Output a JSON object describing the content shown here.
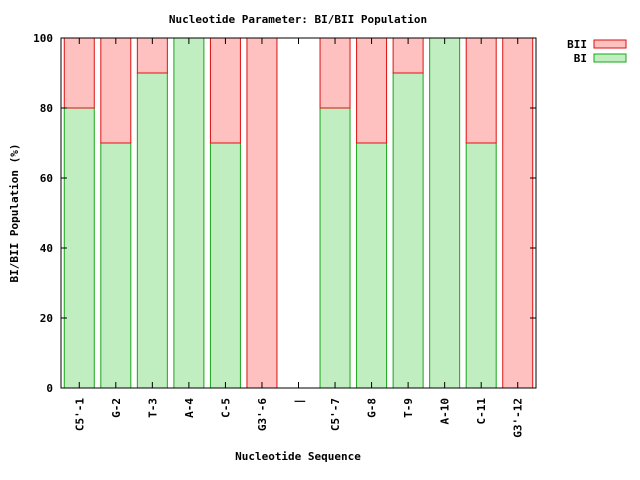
{
  "chart_data": {
    "type": "bar",
    "stacked": true,
    "title": "Nucleotide Parameter: BI/BII Population",
    "xlabel": "Nucleotide Sequence",
    "ylabel": "BI/BII Population (%)",
    "ylim": [
      0,
      100
    ],
    "yticks": [
      "0",
      "20",
      "40",
      "60",
      "80",
      "100"
    ],
    "categories": [
      "C5'-1",
      "G-2",
      "T-3",
      "A-4",
      "C-5",
      "G3'-6",
      "|",
      "C5'-7",
      "G-8",
      "T-9",
      "A-10",
      "C-11",
      "G3'-12"
    ],
    "series": [
      {
        "name": "BI",
        "color": "#c0eec0",
        "edge": "#1aa51a",
        "values": [
          80,
          70,
          90,
          100,
          70,
          0,
          null,
          80,
          70,
          90,
          100,
          70,
          0
        ]
      },
      {
        "name": "BII",
        "color": "#ffc0c0",
        "edge": "#dd1111",
        "values": [
          20,
          30,
          10,
          0,
          30,
          100,
          null,
          20,
          30,
          10,
          0,
          30,
          100
        ]
      }
    ],
    "legend_order": [
      "BII",
      "BI"
    ],
    "legend_position": "top-right, outside plot",
    "grid": false
  }
}
